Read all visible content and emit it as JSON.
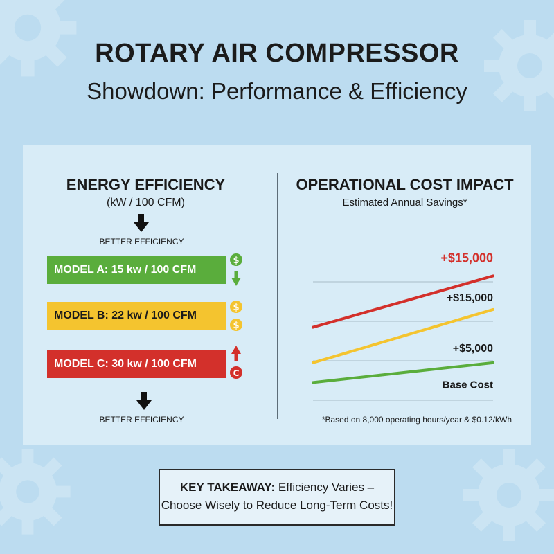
{
  "header": {
    "title": "ROTARY AIR COMPRESSOR",
    "subtitle": "Showdown: Performance & Efficiency"
  },
  "colors": {
    "background": "#bcdcf0",
    "panel": "#d8ecf7",
    "green": "#5aad3c",
    "yellow": "#f4c42f",
    "red": "#d3302b"
  },
  "efficiency": {
    "title": "ENERGY EFFICIENCY",
    "unit": "(kW / 100 CFM)",
    "better_label_top": "BETTER EFFICIENCY",
    "better_label_bottom": "BETTER EFFICIENCY",
    "models": [
      {
        "label": "MODEL A: 15 kw / 100 CFM",
        "value": 15,
        "color": "#5aad3c",
        "icons": [
          "dollar-icon",
          "arrow-down-icon"
        ]
      },
      {
        "label": "MODEL B: 22 kw / 100 CFM",
        "value": 22,
        "color": "#f4c42f",
        "icons": [
          "dollar-icon",
          "dollar-icon"
        ]
      },
      {
        "label": "MODEL C: 30 kw / 100 CFM",
        "value": 30,
        "color": "#d3302b",
        "icons": [
          "arrow-up-icon",
          "cost-icon"
        ]
      }
    ]
  },
  "chart_data": {
    "type": "line",
    "title": "OPERATIONAL COST IMPACT",
    "subtitle": "Estimated Annual Savings*",
    "x": [
      0,
      1
    ],
    "ylim": [
      0,
      4
    ],
    "grid": true,
    "series": [
      {
        "label": "+$15,000",
        "color": "#d3302b",
        "values": [
          1.85,
          3.15
        ]
      },
      {
        "label": "+$15,000",
        "color": "#f4c42f",
        "values": [
          0.95,
          2.3
        ]
      },
      {
        "label": "+$5,000",
        "color": "#5aad3c",
        "values": [
          0.45,
          0.95
        ]
      }
    ],
    "baseline_label": "Base Cost",
    "footnote": "*Based on 8,000 operating hours/year & $0.12/kWh"
  },
  "takeaway": {
    "lead": "KEY TAKEAWAY:",
    "line1": "Efficiency Varies –",
    "line2": "Choose Wisely to Reduce Long-Term Costs!"
  }
}
